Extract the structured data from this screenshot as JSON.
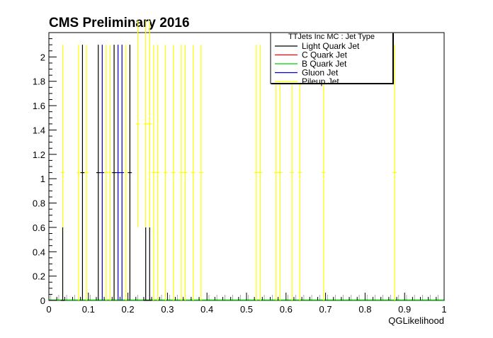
{
  "chart_data": {
    "type": "line",
    "title": "CMS Preliminary 2016",
    "xlabel": "QGLikelihood",
    "ylabel": "",
    "xlim": [
      0,
      1
    ],
    "ylim": [
      0,
      2.2
    ],
    "x_ticks": [
      "0",
      "0.1",
      "0.2",
      "0.3",
      "0.4",
      "0.5",
      "0.6",
      "0.7",
      "0.8",
      "0.9",
      "1"
    ],
    "y_ticks": [
      "0",
      "0.2",
      "0.4",
      "0.6",
      "0.8",
      "1",
      "1.2",
      "1.4",
      "1.6",
      "1.8",
      "2"
    ],
    "legend": {
      "header": "TTJets Inc MC : Jet Type",
      "placement": "top-right",
      "entries": [
        {
          "name": "Light Quark Jet",
          "color": "#000000"
        },
        {
          "name": "C Quark Jet",
          "color": "#ff0000"
        },
        {
          "name": "B Quark Jet",
          "color": "#00cc00"
        },
        {
          "name": "Gluon Jet",
          "color": "#0000cc"
        },
        {
          "name": "Pileup Jet",
          "color": "#ffff00"
        }
      ]
    },
    "bin_width": 0.01,
    "series": [
      {
        "name": "Light Quark Jet",
        "color": "#000000",
        "points": [
          {
            "x": 0.035,
            "y": 0.0,
            "err": 0.6
          },
          {
            "x": 0.085,
            "y": 1.05,
            "err": 1.05
          },
          {
            "x": 0.125,
            "y": 1.05,
            "err": 1.05
          },
          {
            "x": 0.165,
            "y": 1.05,
            "err": 1.05
          },
          {
            "x": 0.205,
            "y": 1.05,
            "err": 1.05
          },
          {
            "x": 0.245,
            "y": 0.0,
            "err": 0.6
          },
          {
            "x": 0.255,
            "y": 0.0,
            "err": 0.6
          }
        ]
      },
      {
        "name": "C Quark Jet",
        "color": "#ff0000",
        "points": []
      },
      {
        "name": "B Quark Jet",
        "color": "#00cc00",
        "points": []
      },
      {
        "name": "Gluon Jet",
        "color": "#0000cc",
        "points": [
          {
            "x": 0.135,
            "y": 1.05,
            "err": 1.05
          },
          {
            "x": 0.175,
            "y": 1.05,
            "err": 1.05
          },
          {
            "x": 0.185,
            "y": 1.05,
            "err": 1.05
          }
        ]
      },
      {
        "name": "Pileup Jet",
        "color": "#ffff00",
        "points": [
          {
            "x": 0.035,
            "y": 1.05,
            "err": 1.05
          },
          {
            "x": 0.075,
            "y": 1.05,
            "err": 1.05
          },
          {
            "x": 0.095,
            "y": 1.05,
            "err": 1.05
          },
          {
            "x": 0.145,
            "y": 1.05,
            "err": 1.05
          },
          {
            "x": 0.155,
            "y": 1.05,
            "err": 1.05
          },
          {
            "x": 0.165,
            "y": 1.05,
            "err": 1.05
          },
          {
            "x": 0.195,
            "y": 1.05,
            "err": 1.05
          },
          {
            "x": 0.225,
            "y": 1.45,
            "err": 0.85
          },
          {
            "x": 0.245,
            "y": 1.45,
            "err": 0.85
          },
          {
            "x": 0.255,
            "y": 1.45,
            "err": 0.85
          },
          {
            "x": 0.265,
            "y": 1.05,
            "err": 1.05
          },
          {
            "x": 0.275,
            "y": 1.05,
            "err": 1.05
          },
          {
            "x": 0.295,
            "y": 1.05,
            "err": 1.05
          },
          {
            "x": 0.315,
            "y": 1.05,
            "err": 1.05
          },
          {
            "x": 0.335,
            "y": 1.05,
            "err": 1.05
          },
          {
            "x": 0.345,
            "y": 1.05,
            "err": 1.05
          },
          {
            "x": 0.365,
            "y": 1.05,
            "err": 1.05
          },
          {
            "x": 0.385,
            "y": 1.05,
            "err": 1.05
          },
          {
            "x": 0.525,
            "y": 1.05,
            "err": 1.05
          },
          {
            "x": 0.535,
            "y": 1.05,
            "err": 1.05
          },
          {
            "x": 0.575,
            "y": 1.05,
            "err": 1.05
          },
          {
            "x": 0.585,
            "y": 1.05,
            "err": 1.05
          },
          {
            "x": 0.615,
            "y": 1.05,
            "err": 1.05
          },
          {
            "x": 0.635,
            "y": 1.05,
            "err": 1.05
          },
          {
            "x": 0.695,
            "y": 1.05,
            "err": 1.05
          },
          {
            "x": 0.875,
            "y": 1.05,
            "err": 1.05
          }
        ]
      }
    ]
  }
}
